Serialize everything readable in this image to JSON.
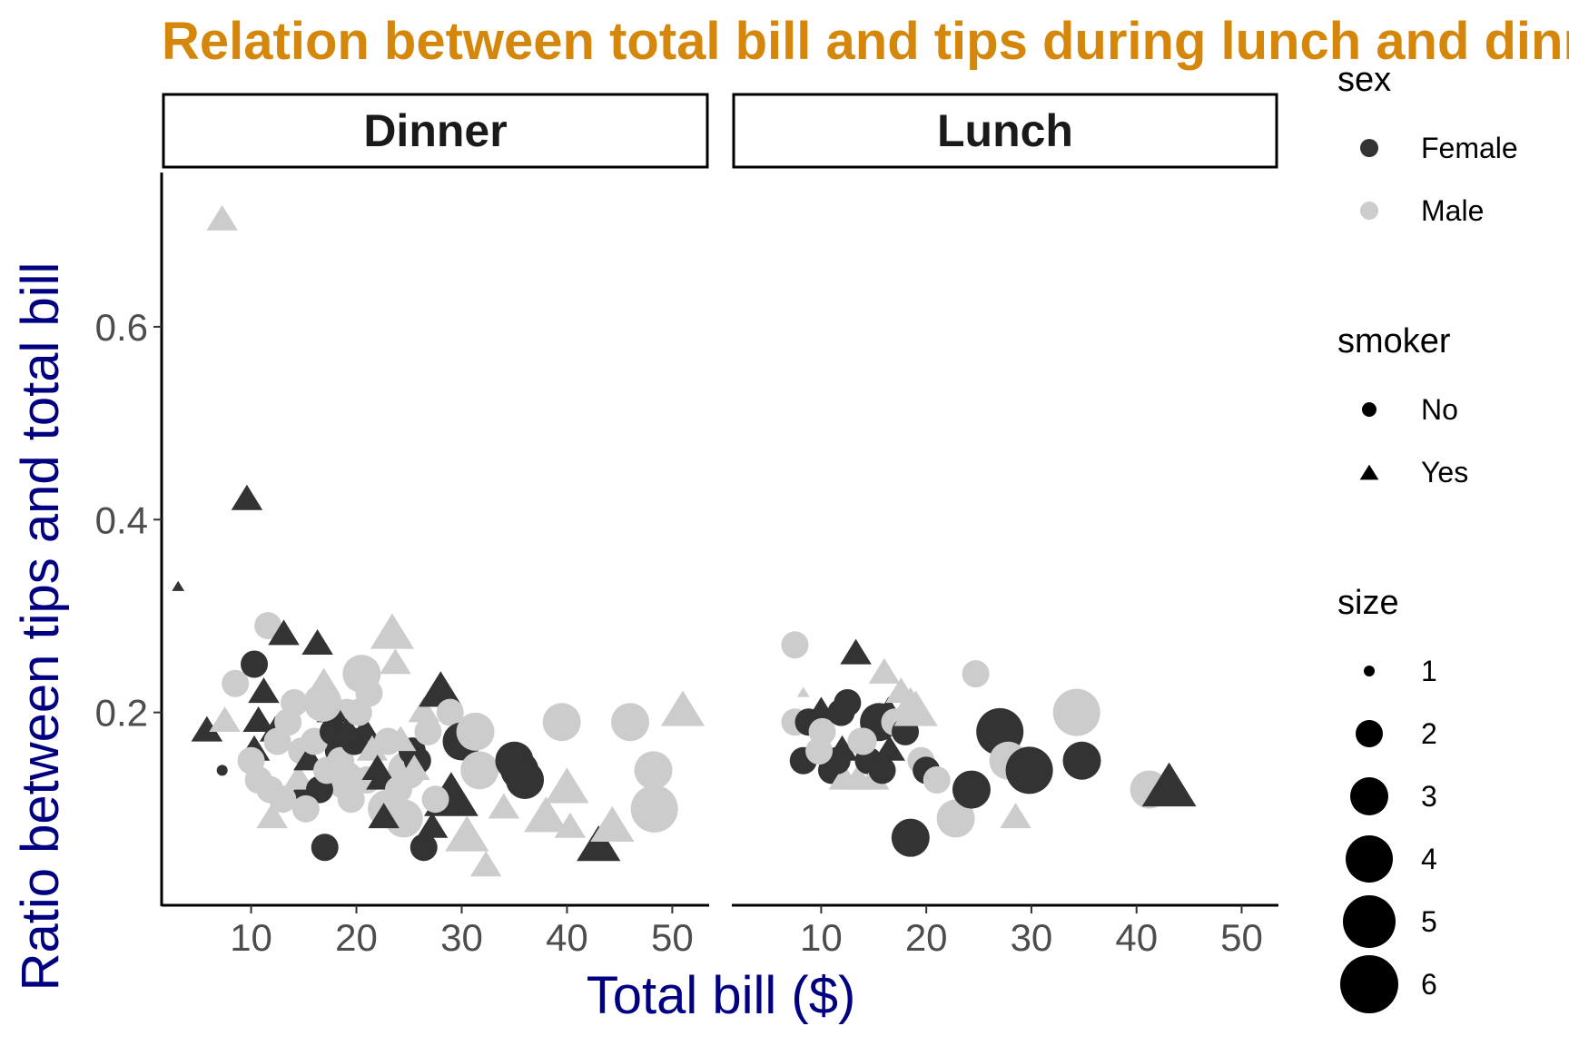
{
  "chart_data": {
    "type": "scatter",
    "title": "Relation between total bill and tips during lunch and dinner",
    "xlabel": "Total bill ($)",
    "ylabel": "Ratio between tips and total bill",
    "xlim": [
      1.5,
      53.5
    ],
    "ylim": [
      0.0,
      0.76
    ],
    "x_ticks": [
      10,
      20,
      30,
      40,
      50
    ],
    "y_ticks": [
      0.2,
      0.4,
      0.6
    ],
    "x_tick_labels": [
      "10",
      "20",
      "30",
      "40",
      "50"
    ],
    "y_tick_labels": [
      "0.2",
      "0.4",
      "0.6"
    ],
    "grid": false,
    "colors": {
      "Female": "#333333",
      "Male": "#cccccc"
    },
    "legend": {
      "position": "right",
      "sex": {
        "title": "sex",
        "items": [
          "Female",
          "Male"
        ]
      },
      "smoker": {
        "title": "smoker",
        "items": [
          "No",
          "Yes"
        ]
      },
      "size": {
        "title": "size",
        "items": [
          "1",
          "2",
          "3",
          "4",
          "5",
          "6"
        ]
      }
    },
    "facets": [
      {
        "label": "Dinner",
        "points": [
          [
            7.25,
            0.71,
            "Male",
            "Yes",
            2
          ],
          [
            3.07,
            0.33,
            "Female",
            "Yes",
            1
          ],
          [
            9.6,
            0.42,
            "Female",
            "Yes",
            2
          ],
          [
            7.25,
            0.14,
            "Female",
            "No",
            1
          ],
          [
            5.8,
            0.18,
            "Female",
            "Yes",
            2
          ],
          [
            7.5,
            0.19,
            "Male",
            "Yes",
            2
          ],
          [
            8.5,
            0.23,
            "Male",
            "No",
            2
          ],
          [
            10.3,
            0.25,
            "Female",
            "No",
            2
          ],
          [
            11.6,
            0.29,
            "Male",
            "No",
            2
          ],
          [
            11.2,
            0.22,
            "Female",
            "Yes",
            2
          ],
          [
            10.7,
            0.19,
            "Female",
            "Yes",
            2
          ],
          [
            10.3,
            0.16,
            "Female",
            "Yes",
            2
          ],
          [
            10.0,
            0.15,
            "Male",
            "No",
            2
          ],
          [
            10.7,
            0.13,
            "Male",
            "No",
            2
          ],
          [
            12.3,
            0.18,
            "Female",
            "Yes",
            2
          ],
          [
            13.1,
            0.28,
            "Female",
            "Yes",
            2
          ],
          [
            14.1,
            0.21,
            "Male",
            "No",
            2
          ],
          [
            14.8,
            0.16,
            "Male",
            "No",
            2
          ],
          [
            15.0,
            0.12,
            "Female",
            "Yes",
            2
          ],
          [
            16.3,
            0.27,
            "Female",
            "Yes",
            2
          ],
          [
            16.9,
            0.23,
            "Male",
            "Yes",
            2
          ],
          [
            17.5,
            0.21,
            "Female",
            "Yes",
            2
          ],
          [
            18.0,
            0.19,
            "Female",
            "Yes",
            2
          ],
          [
            18.3,
            0.16,
            "Female",
            "No",
            2
          ],
          [
            19.1,
            0.2,
            "Male",
            "No",
            2
          ],
          [
            20.5,
            0.24,
            "Male",
            "No",
            3
          ],
          [
            21.2,
            0.22,
            "Male",
            "No",
            2
          ],
          [
            23.4,
            0.28,
            "Male",
            "Yes",
            3
          ],
          [
            23.7,
            0.25,
            "Male",
            "Yes",
            2
          ],
          [
            18.9,
            0.13,
            "Male",
            "No",
            3
          ],
          [
            21.0,
            0.13,
            "Male",
            "No",
            2
          ],
          [
            22.4,
            0.13,
            "Female",
            "Yes",
            2
          ],
          [
            22.9,
            0.1,
            "Male",
            "No",
            3
          ],
          [
            24.5,
            0.09,
            "Male",
            "No",
            3
          ],
          [
            24.8,
            0.14,
            "Male",
            "No",
            3
          ],
          [
            25.3,
            0.16,
            "Female",
            "No",
            2
          ],
          [
            26.4,
            0.06,
            "Female",
            "No",
            2
          ],
          [
            17.0,
            0.06,
            "Female",
            "No",
            2
          ],
          [
            27.2,
            0.08,
            "Female",
            "Yes",
            2
          ],
          [
            26.4,
            0.2,
            "Male",
            "Yes",
            2
          ],
          [
            28.0,
            0.22,
            "Female",
            "Yes",
            3
          ],
          [
            28.9,
            0.2,
            "Male",
            "No",
            2
          ],
          [
            30.0,
            0.17,
            "Female",
            "No",
            3
          ],
          [
            29.0,
            0.11,
            "Female",
            "Yes",
            4
          ],
          [
            31.3,
            0.18,
            "Male",
            "No",
            3
          ],
          [
            31.7,
            0.14,
            "Male",
            "No",
            3
          ],
          [
            30.5,
            0.07,
            "Male",
            "Yes",
            3
          ],
          [
            32.3,
            0.04,
            "Male",
            "Yes",
            2
          ],
          [
            34.0,
            0.1,
            "Male",
            "Yes",
            2
          ],
          [
            35.0,
            0.15,
            "Female",
            "No",
            3
          ],
          [
            35.5,
            0.14,
            "Female",
            "No",
            3
          ],
          [
            36.0,
            0.13,
            "Female",
            "No",
            3
          ],
          [
            38.0,
            0.09,
            "Male",
            "Yes",
            3
          ],
          [
            39.5,
            0.19,
            "Male",
            "No",
            3
          ],
          [
            40.0,
            0.12,
            "Male",
            "Yes",
            3
          ],
          [
            40.3,
            0.08,
            "Male",
            "Yes",
            2
          ],
          [
            43.0,
            0.06,
            "Female",
            "Yes",
            3
          ],
          [
            44.3,
            0.08,
            "Male",
            "Yes",
            3
          ],
          [
            46.0,
            0.19,
            "Male",
            "No",
            3
          ],
          [
            48.2,
            0.14,
            "Male",
            "No",
            3
          ],
          [
            48.3,
            0.1,
            "Male",
            "No",
            4
          ],
          [
            51.0,
            0.2,
            "Male",
            "Yes",
            3
          ],
          [
            12.5,
            0.17,
            "Male",
            "No",
            2
          ],
          [
            13.5,
            0.19,
            "Male",
            "No",
            2
          ],
          [
            14.5,
            0.13,
            "Male",
            "Yes",
            2
          ],
          [
            15.5,
            0.15,
            "Female",
            "Yes",
            2
          ],
          [
            16.0,
            0.17,
            "Male",
            "No",
            2
          ],
          [
            16.5,
            0.12,
            "Female",
            "No",
            2
          ],
          [
            17.2,
            0.14,
            "Male",
            "No",
            2
          ],
          [
            17.8,
            0.18,
            "Female",
            "No",
            2
          ],
          [
            18.5,
            0.15,
            "Male",
            "No",
            2
          ],
          [
            19.5,
            0.11,
            "Male",
            "No",
            2
          ],
          [
            19.8,
            0.17,
            "Female",
            "No",
            2
          ],
          [
            20.8,
            0.18,
            "Female",
            "Yes",
            2
          ],
          [
            21.5,
            0.16,
            "Male",
            "Yes",
            2
          ],
          [
            22.0,
            0.14,
            "Female",
            "Yes",
            2
          ],
          [
            23.0,
            0.17,
            "Male",
            "No",
            2
          ],
          [
            24.0,
            0.12,
            "Male",
            "No",
            2
          ],
          [
            25.8,
            0.15,
            "Female",
            "No",
            2
          ],
          [
            26.8,
            0.18,
            "Male",
            "No",
            2
          ],
          [
            27.5,
            0.11,
            "Male",
            "No",
            2
          ],
          [
            15.2,
            0.1,
            "Male",
            "No",
            2
          ],
          [
            13.0,
            0.11,
            "Male",
            "No",
            2
          ],
          [
            11.8,
            0.12,
            "Male",
            "No",
            2
          ],
          [
            22.6,
            0.09,
            "Female",
            "Yes",
            2
          ],
          [
            12.0,
            0.09,
            "Male",
            "Yes",
            2
          ],
          [
            17.7,
            0.2,
            "Female",
            "Yes",
            2
          ],
          [
            19.2,
            0.18,
            "Female",
            "Yes",
            2
          ],
          [
            16.8,
            0.21,
            "Male",
            "No",
            3
          ],
          [
            20.2,
            0.2,
            "Male",
            "No",
            2
          ],
          [
            24.2,
            0.17,
            "Male",
            "Yes",
            2
          ],
          [
            25.5,
            0.14,
            "Male",
            "Yes",
            2
          ]
        ]
      },
      {
        "label": "Lunch",
        "points": [
          [
            7.5,
            0.27,
            "Male",
            "No",
            2
          ],
          [
            7.5,
            0.19,
            "Male",
            "No",
            2
          ],
          [
            8.3,
            0.22,
            "Male",
            "Yes",
            1
          ],
          [
            8.3,
            0.15,
            "Female",
            "No",
            2
          ],
          [
            8.8,
            0.19,
            "Female",
            "No",
            2
          ],
          [
            10.0,
            0.2,
            "Female",
            "Yes",
            2
          ],
          [
            10.1,
            0.18,
            "Male",
            "No",
            2
          ],
          [
            11.0,
            0.14,
            "Female",
            "No",
            2
          ],
          [
            11.9,
            0.2,
            "Female",
            "No",
            2
          ],
          [
            12.5,
            0.21,
            "Female",
            "No",
            2
          ],
          [
            12.0,
            0.16,
            "Female",
            "Yes",
            2
          ],
          [
            12.2,
            0.13,
            "Male",
            "Yes",
            2
          ],
          [
            13.3,
            0.26,
            "Female",
            "Yes",
            2
          ],
          [
            13.5,
            0.13,
            "Male",
            "Yes",
            2
          ],
          [
            13.8,
            0.17,
            "Male",
            "No",
            2
          ],
          [
            14.5,
            0.15,
            "Female",
            "No",
            2
          ],
          [
            15.0,
            0.13,
            "Male",
            "Yes",
            2
          ],
          [
            15.5,
            0.19,
            "Female",
            "No",
            3
          ],
          [
            16.0,
            0.24,
            "Male",
            "Yes",
            2
          ],
          [
            16.4,
            0.2,
            "Female",
            "Yes",
            2
          ],
          [
            16.5,
            0.16,
            "Female",
            "Yes",
            2
          ],
          [
            17.0,
            0.19,
            "Male",
            "No",
            2
          ],
          [
            17.6,
            0.22,
            "Male",
            "Yes",
            2
          ],
          [
            18.0,
            0.18,
            "Female",
            "No",
            2
          ],
          [
            18.5,
            0.21,
            "Male",
            "Yes",
            2
          ],
          [
            19.0,
            0.2,
            "Male",
            "Yes",
            3
          ],
          [
            19.5,
            0.15,
            "Male",
            "No",
            2
          ],
          [
            20.0,
            0.14,
            "Female",
            "No",
            2
          ],
          [
            18.5,
            0.07,
            "Female",
            "No",
            3
          ],
          [
            21.0,
            0.13,
            "Male",
            "No",
            2
          ],
          [
            22.8,
            0.09,
            "Male",
            "No",
            3
          ],
          [
            24.3,
            0.12,
            "Female",
            "No",
            3
          ],
          [
            24.7,
            0.24,
            "Male",
            "No",
            2
          ],
          [
            27.0,
            0.18,
            "Female",
            "No",
            4
          ],
          [
            27.8,
            0.15,
            "Male",
            "No",
            3
          ],
          [
            28.5,
            0.09,
            "Male",
            "Yes",
            2
          ],
          [
            29.8,
            0.14,
            "Female",
            "No",
            4
          ],
          [
            34.3,
            0.2,
            "Male",
            "No",
            4
          ],
          [
            34.8,
            0.15,
            "Female",
            "No",
            3
          ],
          [
            41.2,
            0.12,
            "Male",
            "No",
            3
          ],
          [
            43.1,
            0.12,
            "Female",
            "Yes",
            4
          ],
          [
            14.0,
            0.17,
            "Male",
            "No",
            2
          ],
          [
            11.5,
            0.15,
            "Female",
            "No",
            2
          ],
          [
            9.8,
            0.16,
            "Male",
            "No",
            2
          ],
          [
            15.8,
            0.14,
            "Female",
            "No",
            2
          ]
        ]
      }
    ]
  }
}
